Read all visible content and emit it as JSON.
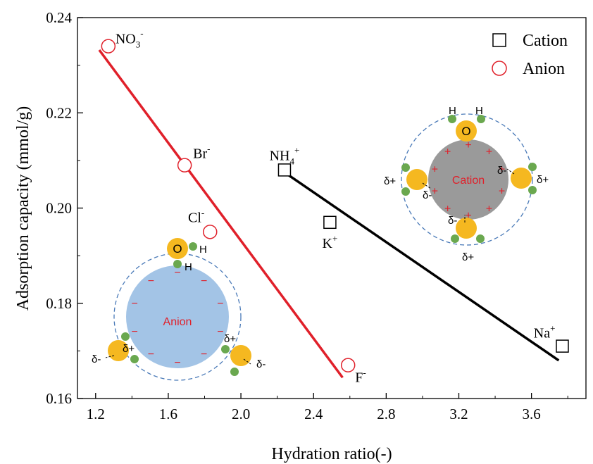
{
  "chart_data": {
    "type": "scatter",
    "xlabel": "Hydration ratio(-)",
    "ylabel": "Adsorption capacity (mmol/g)",
    "xlim": [
      1.1,
      3.9
    ],
    "ylim": [
      0.16,
      0.24
    ],
    "xticks": [
      "1.2",
      "1.6",
      "2.0",
      "2.4",
      "2.8",
      "3.2",
      "3.6"
    ],
    "yticks": [
      "0.16",
      "0.18",
      "0.20",
      "0.22",
      "0.24"
    ],
    "legend_position": "top-right",
    "series": [
      {
        "name": "Cation",
        "marker": "square",
        "color": "#000000",
        "points": [
          {
            "label": "NH",
            "sub": "4",
            "sup": "+",
            "x": 2.24,
            "y": 0.208
          },
          {
            "label": "K",
            "sub": "",
            "sup": "+",
            "x": 2.49,
            "y": 0.197
          },
          {
            "label": "Na",
            "sub": "",
            "sup": "+",
            "x": 3.77,
            "y": 0.171
          }
        ],
        "fit_line": {
          "x": [
            2.24,
            3.75
          ],
          "y": [
            0.2075,
            0.168
          ],
          "color": "#000000"
        }
      },
      {
        "name": "Anion",
        "marker": "circle",
        "color": "#e0202a",
        "points": [
          {
            "label": "NO",
            "sub": "3",
            "sup": "-",
            "x": 1.27,
            "y": 0.234
          },
          {
            "label": "Br",
            "sub": "",
            "sup": "-",
            "x": 1.69,
            "y": 0.209
          },
          {
            "label": "Cl",
            "sub": "",
            "sup": "-",
            "x": 1.83,
            "y": 0.195
          },
          {
            "label": "F",
            "sub": "",
            "sup": "-",
            "x": 2.59,
            "y": 0.167
          }
        ],
        "fit_line": {
          "x": [
            1.22,
            2.56
          ],
          "y": [
            0.2332,
            0.1644
          ],
          "color": "#e0202a"
        }
      }
    ]
  },
  "insets": {
    "cation": {
      "core_label": "Cation",
      "core_color": "#9a9a9a",
      "charge_sign": "+",
      "o_label": "O",
      "h_label": "H",
      "delta_plus": "δ+",
      "delta_minus": "δ-"
    },
    "anion": {
      "core_label": "Anion",
      "core_color": "#a3c4e6",
      "charge_sign": "−",
      "o_label": "O",
      "h_label": "H",
      "delta_plus": "δ+",
      "delta_minus": "δ-"
    }
  },
  "colors": {
    "water_o": "#f5b820",
    "water_h": "#6aa84f",
    "shell": "#4a7ab8",
    "red": "#e0202a"
  }
}
